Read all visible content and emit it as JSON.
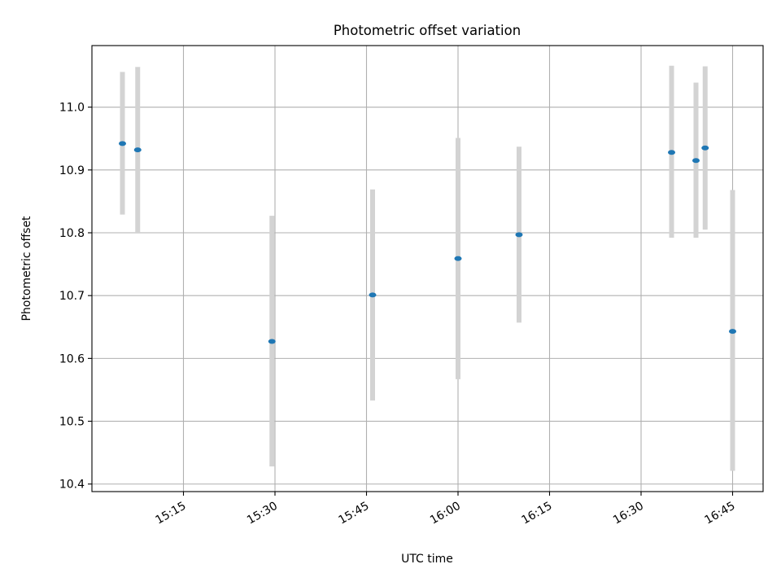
{
  "chart_data": {
    "type": "scatter",
    "title": "Photometric offset variation",
    "xlabel": "UTC time",
    "ylabel": "Photometric offset",
    "x_ticks": [
      "15:15",
      "15:30",
      "15:45",
      "16:00",
      "16:15",
      "16:30",
      "16:45"
    ],
    "y_ticks": [
      "10.4",
      "10.5",
      "10.6",
      "10.7",
      "10.8",
      "10.9",
      "11.0"
    ],
    "xlim": [
      "15:00",
      "16:50"
    ],
    "ylim": [
      10.388,
      11.098
    ],
    "grid": true,
    "marker_color": "#1f77b4",
    "errorbar_color": "#d3d3d3",
    "series": [
      {
        "points": [
          {
            "x": "15:05",
            "y": 10.942,
            "ylow": 10.829,
            "yhigh": 11.056
          },
          {
            "x": "15:07.5",
            "y": 10.932,
            "ylow": 10.8,
            "yhigh": 11.064
          },
          {
            "x": "15:29.5",
            "y": 10.627,
            "ylow": 10.428,
            "yhigh": 10.827
          },
          {
            "x": "15:46",
            "y": 10.701,
            "ylow": 10.533,
            "yhigh": 10.869
          },
          {
            "x": "16:00",
            "y": 10.759,
            "ylow": 10.567,
            "yhigh": 10.951
          },
          {
            "x": "16:10",
            "y": 10.797,
            "ylow": 10.657,
            "yhigh": 10.937
          },
          {
            "x": "16:35",
            "y": 10.928,
            "ylow": 10.792,
            "yhigh": 11.066
          },
          {
            "x": "16:39",
            "y": 10.915,
            "ylow": 10.792,
            "yhigh": 11.039
          },
          {
            "x": "16:40.5",
            "y": 10.935,
            "ylow": 10.805,
            "yhigh": 11.065
          },
          {
            "x": "16:45",
            "y": 10.643,
            "ylow": 10.421,
            "yhigh": 10.868
          }
        ]
      }
    ]
  }
}
